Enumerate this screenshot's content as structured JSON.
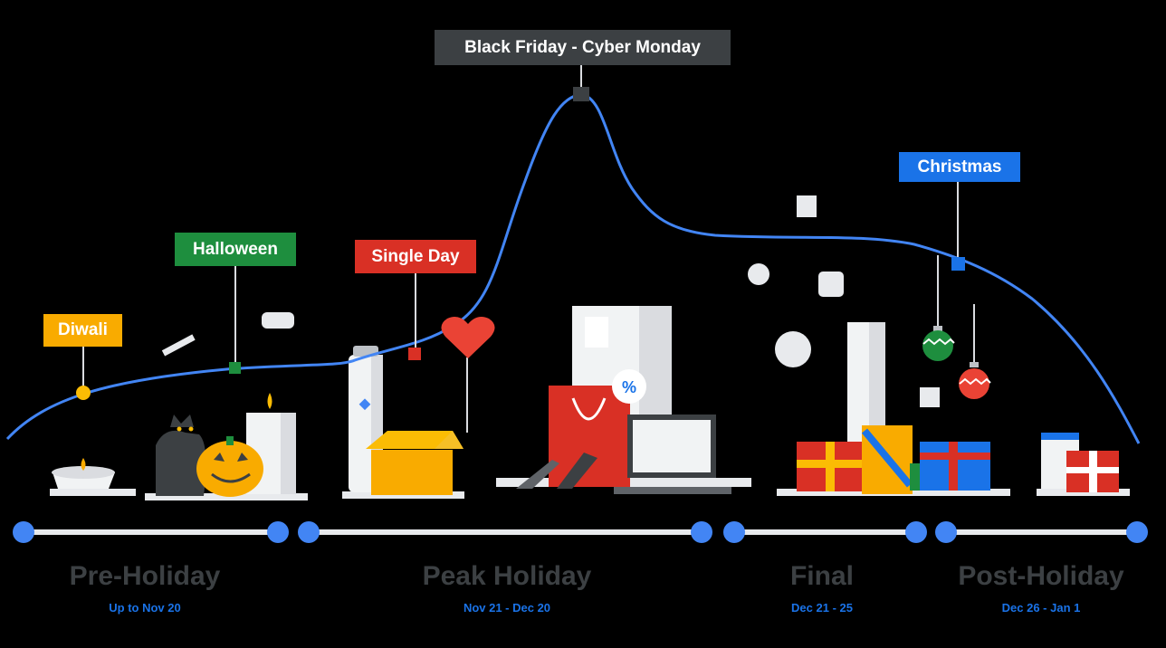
{
  "events": [
    {
      "key": "diwali",
      "label": "Diwali",
      "bg": "#f9ab00",
      "fg": "#ffffff"
    },
    {
      "key": "halloween",
      "label": "Halloween",
      "bg": "#1e8e3e",
      "fg": "#ffffff"
    },
    {
      "key": "single_day",
      "label": "Single Day",
      "bg": "#d93025",
      "fg": "#ffffff"
    },
    {
      "key": "black_friday",
      "label": "Black Friday - Cyber Monday",
      "bg": "#3c4043",
      "fg": "#ffffff"
    },
    {
      "key": "christmas",
      "label": "Christmas",
      "bg": "#1a73e8",
      "fg": "#ffffff"
    }
  ],
  "phases": [
    {
      "key": "pre_holiday",
      "title": "Pre-Holiday",
      "dates": "Up to Nov 20"
    },
    {
      "key": "peak_holiday",
      "title": "Peak Holiday",
      "dates": "Nov 21 - Dec 20"
    },
    {
      "key": "final",
      "title": "Final",
      "dates": "Dec 21 - 25"
    },
    {
      "key": "post_holiday",
      "title": "Post-Holiday",
      "dates": "Dec 26 - Jan 1"
    }
  ],
  "colors": {
    "curve": "#4285f4",
    "timeline_node": "#4285f4",
    "timeline_bar": "#e8eaed"
  }
}
